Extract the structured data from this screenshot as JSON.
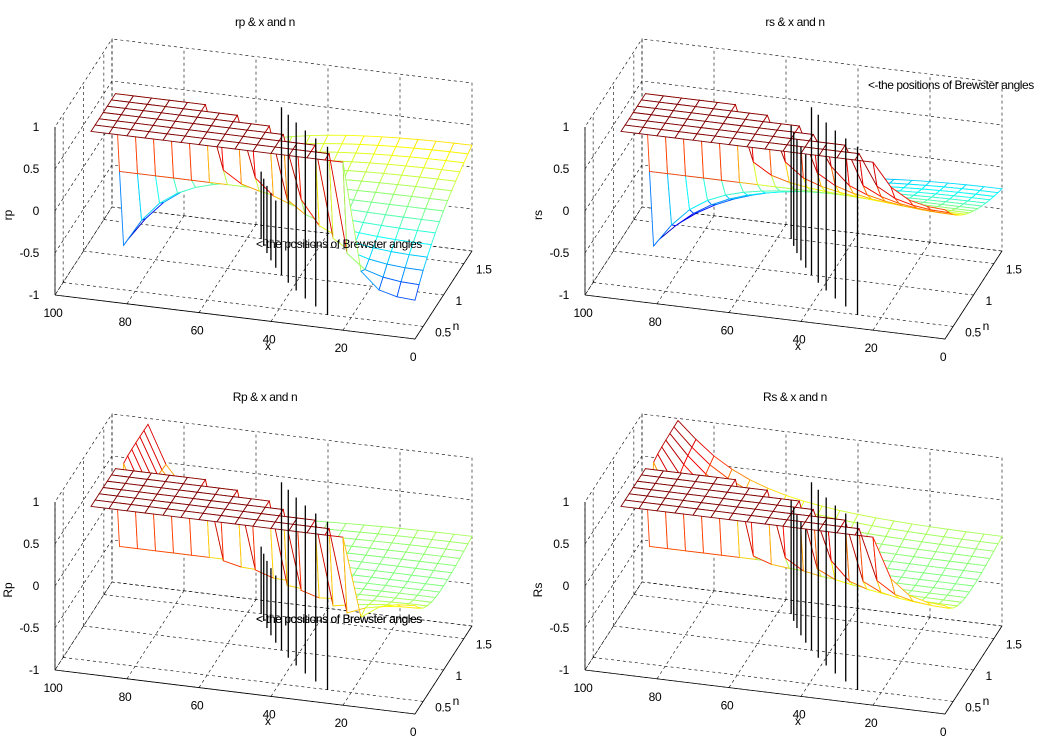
{
  "chart_data": [
    {
      "type": "surface3d",
      "title": "rp & x and n",
      "xlabel": "x",
      "ylabel": "n",
      "zlabel": "rp",
      "xticks": [
        "100",
        "80",
        "60",
        "40",
        "20",
        "0"
      ],
      "yticks": [
        "0.5",
        "1",
        "1.5"
      ],
      "zticks": [
        "-1",
        "-0.5",
        "0",
        "0.5",
        "1"
      ],
      "xlim": [
        0,
        100
      ],
      "ylim": [
        0.3,
        1.7
      ],
      "zlim": [
        -1,
        1
      ],
      "annotation": "<-the positions of Brewster angles",
      "quantity": "rp",
      "grid": true
    },
    {
      "type": "surface3d",
      "title": "rs & x and n",
      "xlabel": "x",
      "ylabel": "n",
      "zlabel": "rs",
      "xticks": [
        "100",
        "80",
        "60",
        "40",
        "20",
        "0"
      ],
      "yticks": [
        "0.5",
        "1",
        "1.5"
      ],
      "zticks": [
        "-1",
        "-0.5",
        "0",
        "0.5",
        "1"
      ],
      "xlim": [
        0,
        100
      ],
      "ylim": [
        0.3,
        1.7
      ],
      "zlim": [
        -1,
        1
      ],
      "annotation": "<-the positions of Brewster angles",
      "quantity": "rs",
      "grid": true
    },
    {
      "type": "surface3d",
      "title": "Rp & x and n",
      "xlabel": "x",
      "ylabel": "n",
      "zlabel": "Rp",
      "xticks": [
        "100",
        "80",
        "60",
        "40",
        "20",
        "0"
      ],
      "yticks": [
        "0.5",
        "1",
        "1.5"
      ],
      "zticks": [
        "-1",
        "-0.5",
        "0",
        "0.5",
        "1"
      ],
      "xlim": [
        0,
        100
      ],
      "ylim": [
        0.3,
        1.7
      ],
      "zlim": [
        -1,
        1
      ],
      "annotation": "<-the positions of Brewster angles",
      "quantity": "Rp",
      "grid": true
    },
    {
      "type": "surface3d",
      "title": "Rs & x  and n",
      "xlabel": "x",
      "ylabel": "n",
      "zlabel": "Rs",
      "xticks": [
        "100",
        "80",
        "60",
        "40",
        "20",
        "0"
      ],
      "yticks": [
        "0.5",
        "1",
        "1.5"
      ],
      "zticks": [
        "-1",
        "-0.5",
        "0",
        "0.5",
        "1"
      ],
      "xlim": [
        0,
        100
      ],
      "ylim": [
        0.3,
        1.7
      ],
      "zlim": [
        -1,
        1
      ],
      "annotation": "<-the positions of Brewster angles",
      "quantity": "Rs",
      "grid": true
    }
  ],
  "colormap": [
    "#00008f",
    "#0000ff",
    "#00ffff",
    "#ffff00",
    "#ff0000",
    "#800000"
  ]
}
